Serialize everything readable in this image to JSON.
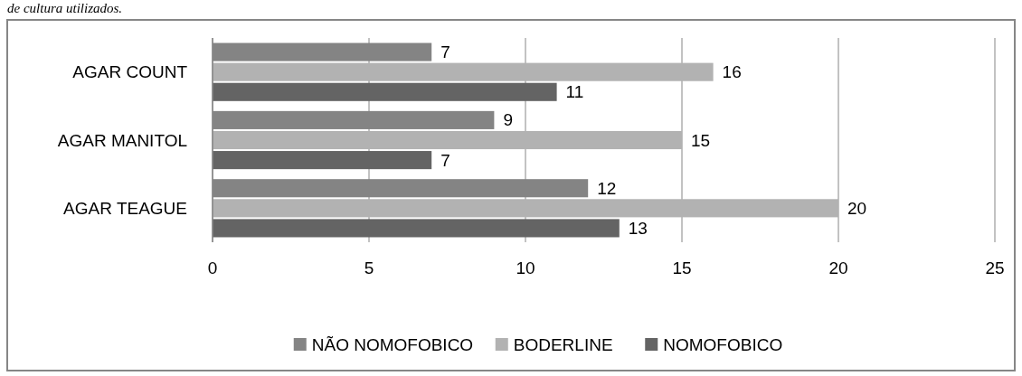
{
  "chart_data": {
    "type": "bar",
    "orientation": "horizontal",
    "categories": [
      "AGAR COUNT",
      "AGAR MANITOL",
      "AGAR TEAGUE"
    ],
    "series": [
      {
        "name": "NÃO NOMOFOBICO",
        "color": "#848484",
        "values": [
          7,
          9,
          12
        ]
      },
      {
        "name": "BODERLINE",
        "color": "#b2b2b2",
        "values": [
          16,
          15,
          20
        ]
      },
      {
        "name": "NOMOFOBICO",
        "color": "#646464",
        "values": [
          11,
          7,
          13
        ]
      }
    ],
    "xlim": [
      0,
      25
    ],
    "xticks": [
      0,
      5,
      10,
      15,
      20,
      25
    ],
    "grid": "x",
    "legend": "bottom",
    "data_labels": true,
    "annotations": [
      "de cultura utilizados."
    ]
  }
}
